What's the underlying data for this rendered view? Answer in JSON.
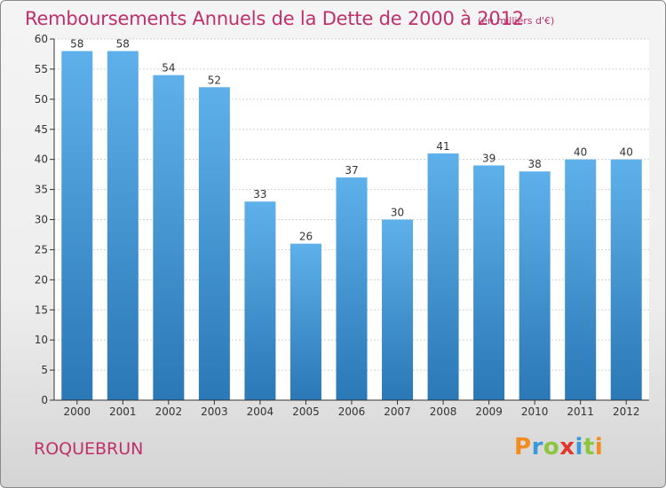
{
  "header": {
    "title": "Remboursements Annuels de la Dette de 2000 à 2012",
    "unit_note": "(en milliers d'€)"
  },
  "footer": {
    "location": "ROQUEBRUN",
    "logo_text": "Proxiti",
    "logo_colors": [
      "#f28c1e",
      "#3a9ad9",
      "#8cc63f",
      "#e2362c",
      "#3a9ad9",
      "#8cc63f",
      "#f28c1e"
    ]
  },
  "colors": {
    "accent": "#c0306a",
    "bar_top": "#5eb0ea",
    "bar_bottom": "#2a78b6"
  },
  "chart_data": {
    "type": "bar",
    "title": "Remboursements Annuels de la Dette de 2000 à 2012",
    "subtitle": "(en milliers d'€)",
    "xlabel": "",
    "ylabel": "",
    "categories": [
      "2000",
      "2001",
      "2002",
      "2003",
      "2004",
      "2005",
      "2006",
      "2007",
      "2008",
      "2009",
      "2010",
      "2011",
      "2012"
    ],
    "values": [
      58,
      58,
      54,
      52,
      33,
      26,
      37,
      30,
      41,
      39,
      38,
      40,
      40
    ],
    "data_labels": [
      "58",
      "58",
      "54",
      "52",
      "33",
      "26",
      "37",
      "30",
      "41",
      "39",
      "38",
      "40",
      "40"
    ],
    "ylim": [
      0,
      60
    ],
    "yticks": [
      "0",
      "5",
      "10",
      "15",
      "20",
      "25",
      "30",
      "35",
      "40",
      "45",
      "50",
      "55",
      "60"
    ],
    "grid": true,
    "legend": "none"
  }
}
